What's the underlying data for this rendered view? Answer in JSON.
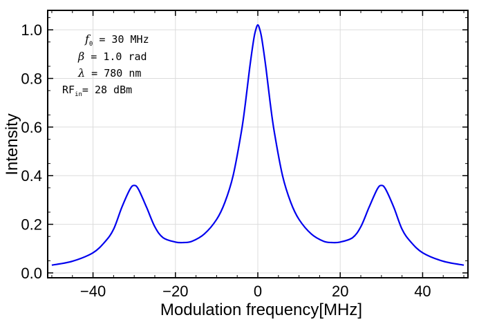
{
  "chart_data": {
    "type": "line",
    "title": "",
    "xlabel": "Modulation frequency[MHz]",
    "ylabel": "Intensity",
    "xlim": [
      -51,
      51
    ],
    "ylim": [
      -0.02,
      1.08
    ],
    "xticks": [
      -40,
      -20,
      0,
      20,
      40
    ],
    "xtick_labels": [
      "−40",
      "−20",
      "0",
      "20",
      "40"
    ],
    "yticks": [
      0.0,
      0.2,
      0.4,
      0.6,
      0.8,
      1.0
    ],
    "ytick_labels": [
      "0.0",
      "0.2",
      "0.4",
      "0.6",
      "0.8",
      "1.0"
    ],
    "grid": true,
    "series": [
      {
        "name": "Intensity",
        "color": "#0000ee",
        "x": [
          -50,
          -45,
          -40,
          -37,
          -35,
          -33,
          -31,
          -30,
          -29,
          -27,
          -25,
          -23,
          -20,
          -18,
          -16,
          -13,
          -10,
          -8,
          -6,
          -4,
          -3,
          -2,
          -1,
          -0.5,
          0,
          0.5,
          1,
          2,
          3,
          4,
          6,
          8,
          10,
          13,
          16,
          18,
          20,
          23,
          25,
          27,
          29,
          30,
          31,
          33,
          35,
          37,
          40,
          45,
          50
        ],
        "values": [
          0.032,
          0.048,
          0.083,
          0.13,
          0.18,
          0.27,
          0.345,
          0.36,
          0.345,
          0.27,
          0.19,
          0.145,
          0.127,
          0.125,
          0.13,
          0.16,
          0.22,
          0.29,
          0.4,
          0.58,
          0.7,
          0.84,
          0.96,
          1.0,
          1.02,
          1.0,
          0.96,
          0.84,
          0.7,
          0.58,
          0.4,
          0.29,
          0.22,
          0.16,
          0.13,
          0.125,
          0.127,
          0.145,
          0.19,
          0.27,
          0.345,
          0.36,
          0.345,
          0.27,
          0.18,
          0.13,
          0.083,
          0.048,
          0.032
        ]
      }
    ],
    "annotations": {
      "f0": {
        "symbol": "f",
        "sub": "0",
        "text": " = 30 MHz"
      },
      "beta": {
        "symbol": "β",
        "text": " = 1.0 rad"
      },
      "lambda": {
        "symbol": "λ",
        "text": " = 780 nm"
      },
      "rf": {
        "symbol": "RF",
        "sub": "in",
        "text": "= 28 dBm"
      }
    }
  }
}
